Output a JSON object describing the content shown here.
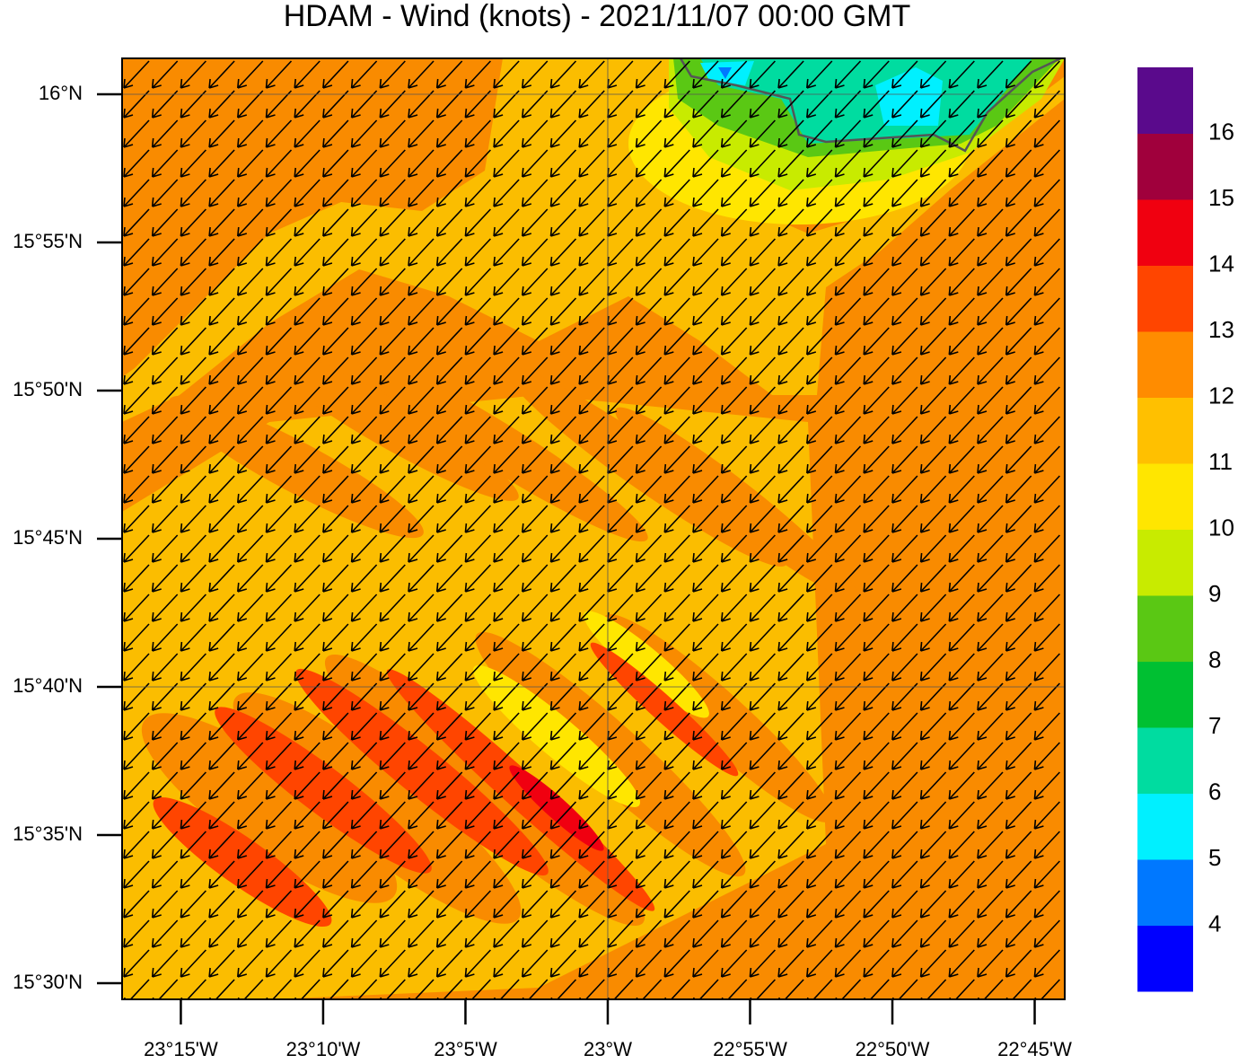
{
  "chart_data": {
    "type": "contour-map",
    "title": "HDAM - Wind (knots)  -  2021/11/07  00:00 GMT",
    "xlim": [
      -23.2844,
      -22.7324
    ],
    "ylim": [
      15.4909,
      16.0202
    ],
    "xticks": [
      {
        "value": -23.25,
        "label": "23°15'W"
      },
      {
        "value": -23.16667,
        "label": "23°10'W"
      },
      {
        "value": -23.08333,
        "label": "23°5'W"
      },
      {
        "value": -23,
        "label": "23°W"
      },
      {
        "value": -22.91667,
        "label": "22°55'W"
      },
      {
        "value": -22.83333,
        "label": "22°50'W"
      },
      {
        "value": -22.75,
        "label": "22°45'W"
      }
    ],
    "yticks": [
      {
        "value": 15.5,
        "label": "15°30'N"
      },
      {
        "value": 15.58333,
        "label": "15°35'N"
      },
      {
        "value": 15.66667,
        "label": "15°40'N"
      },
      {
        "value": 15.75,
        "label": "15°45'N"
      },
      {
        "value": 15.83333,
        "label": "15°50'N"
      },
      {
        "value": 15.91667,
        "label": "15°55'N"
      },
      {
        "value": 16,
        "label": "16°N"
      }
    ],
    "grid_lat": [
      15.66667,
      16
    ],
    "grid_lon": [
      -23
    ],
    "colorbar": {
      "levels": [
        4,
        5,
        6,
        7,
        8,
        9,
        10,
        11,
        12,
        13,
        14,
        15,
        16
      ],
      "colors": [
        "#0000ff",
        "#0078ff",
        "#00f0ff",
        "#00dca0",
        "#00c032",
        "#5ac814",
        "#c8eb00",
        "#ffe600",
        "#ffc000",
        "#ff8c00",
        "#ff4500",
        "#f00010",
        "#a0003c",
        "#5a0a8c"
      ]
    }
  }
}
